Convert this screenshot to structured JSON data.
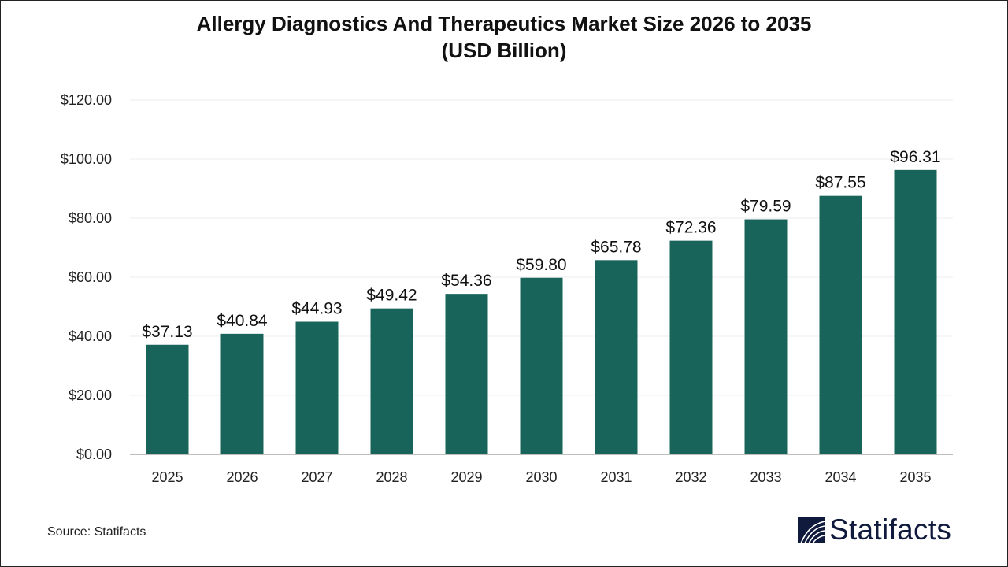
{
  "chart_data": {
    "type": "bar",
    "title": "Allergy Diagnostics And Therapeutics Market Size 2026 to 2035",
    "subtitle": "(USD Billion)",
    "categories": [
      "2025",
      "2026",
      "2027",
      "2028",
      "2029",
      "2030",
      "2031",
      "2032",
      "2033",
      "2034",
      "2035"
    ],
    "values": [
      37.13,
      40.84,
      44.93,
      49.42,
      54.36,
      59.8,
      65.78,
      72.36,
      79.59,
      87.55,
      96.31
    ],
    "data_labels": [
      "$37.13",
      "$40.84",
      "$44.93",
      "$49.42",
      "$54.36",
      "$59.80",
      "$65.78",
      "$72.36",
      "$79.59",
      "$87.55",
      "$96.31"
    ],
    "yticks": [
      0,
      20,
      40,
      60,
      80,
      100,
      120
    ],
    "ytick_labels": [
      "$0.00",
      "$20.00",
      "$40.00",
      "$60.00",
      "$80.00",
      "$100.00",
      "$120.00"
    ],
    "ylim": [
      0,
      120
    ],
    "xlabel": "",
    "ylabel": "",
    "grid": true,
    "legend": "none",
    "bar_color": "#18645A"
  },
  "source": "Source: Statifacts",
  "logo": {
    "text": "Statifacts",
    "color": "#0f1a3c"
  }
}
